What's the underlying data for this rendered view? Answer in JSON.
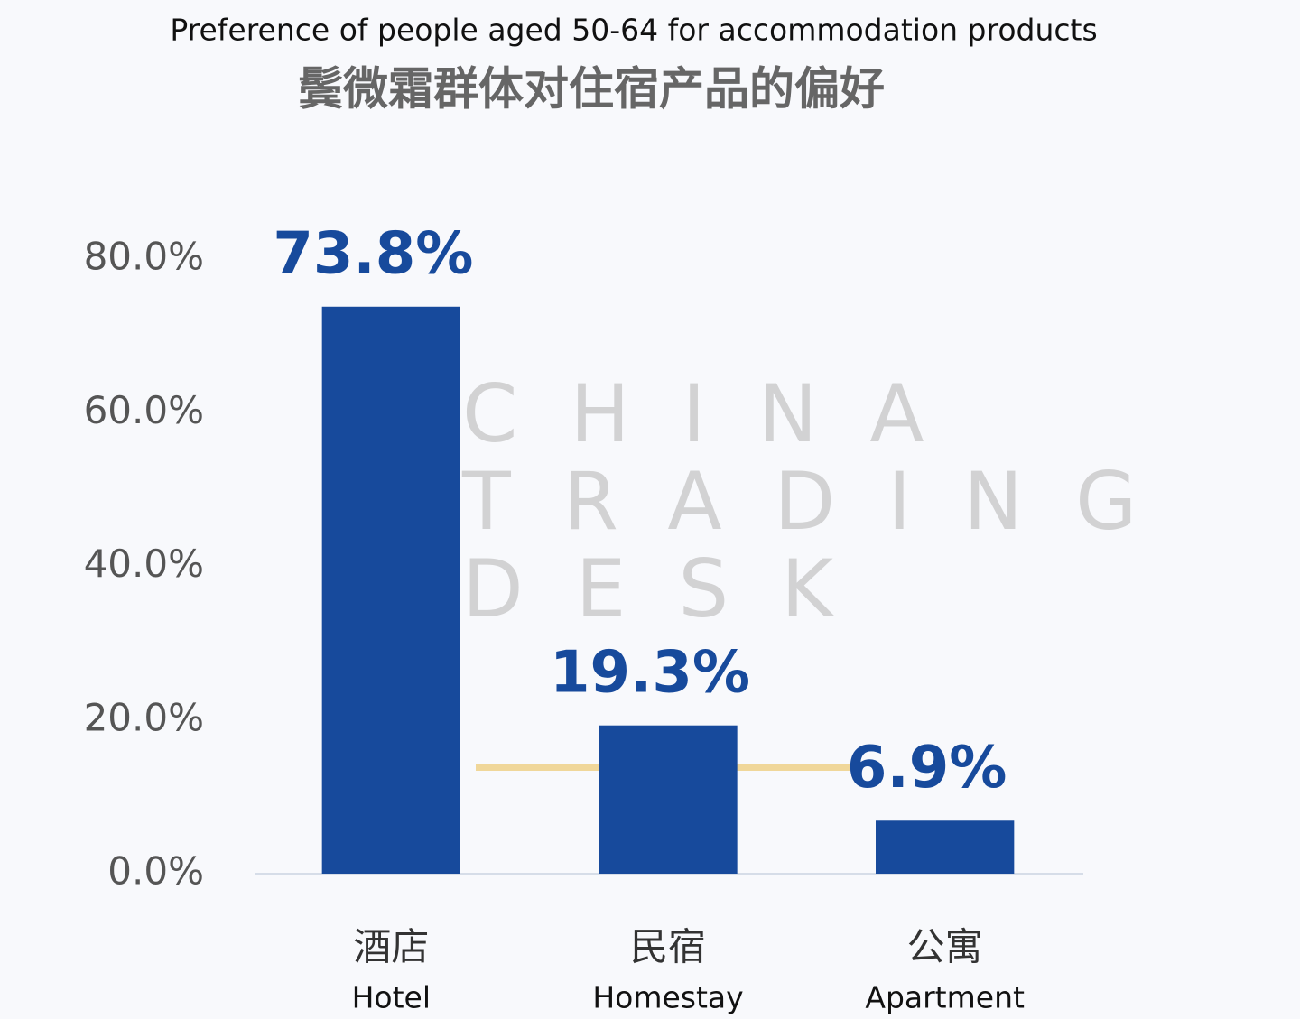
{
  "chart_data": {
    "type": "bar",
    "title": "Preference of people aged 50-64 for accommodation products",
    "subtitle": "鬓微霜群体对住宿产品的偏好",
    "watermark": [
      "CHINA",
      "TRADING",
      "DESK"
    ],
    "categories": [
      "酒店",
      "民宿",
      "公寓"
    ],
    "categories_en": [
      "Hotel",
      "Homestay",
      "Apartment"
    ],
    "values": [
      73.8,
      19.3,
      6.9
    ],
    "value_labels": [
      "73.8%",
      "19.3%",
      "6.9%"
    ],
    "color": "#174a9c",
    "ylim": [
      0,
      80
    ],
    "yticks": [
      {
        "value": 0,
        "label": "0.0%"
      },
      {
        "value": 20,
        "label": "20.0%"
      },
      {
        "value": 40,
        "label": "40.0%"
      },
      {
        "value": 60,
        "label": "60.0%"
      },
      {
        "value": 80,
        "label": "80.0%"
      }
    ],
    "grid": false
  }
}
